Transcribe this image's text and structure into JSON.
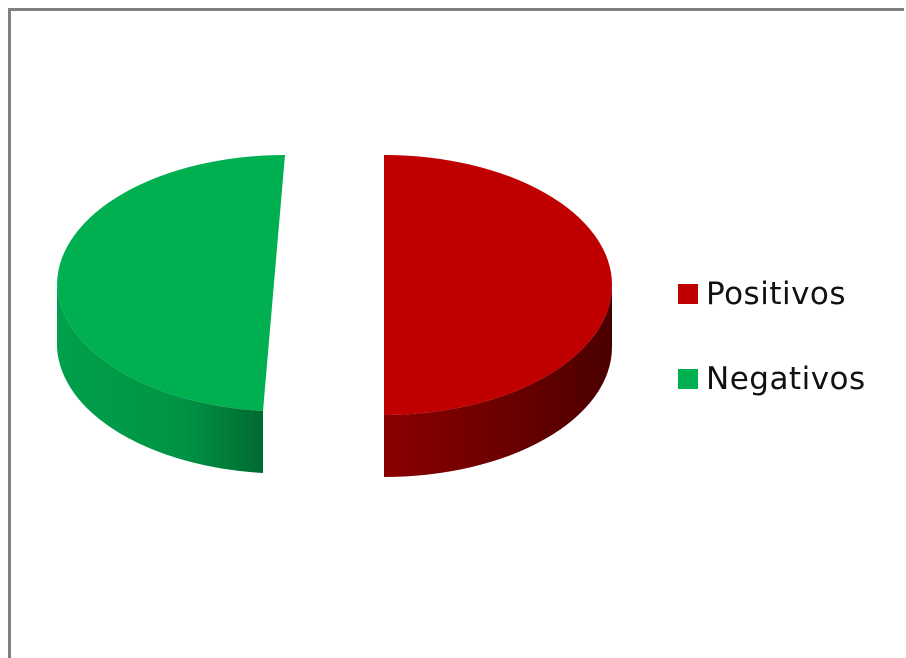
{
  "chart_data": {
    "type": "pie",
    "style": "3d-exploded",
    "title": "",
    "slices": [
      {
        "name": "Positivos",
        "value": 51,
        "color": "#c00000",
        "side_color": "#7a0000"
      },
      {
        "name": "Negativos",
        "value": 49,
        "color": "#00b050",
        "side_color": "#007a35"
      }
    ],
    "legend_position": "right"
  }
}
